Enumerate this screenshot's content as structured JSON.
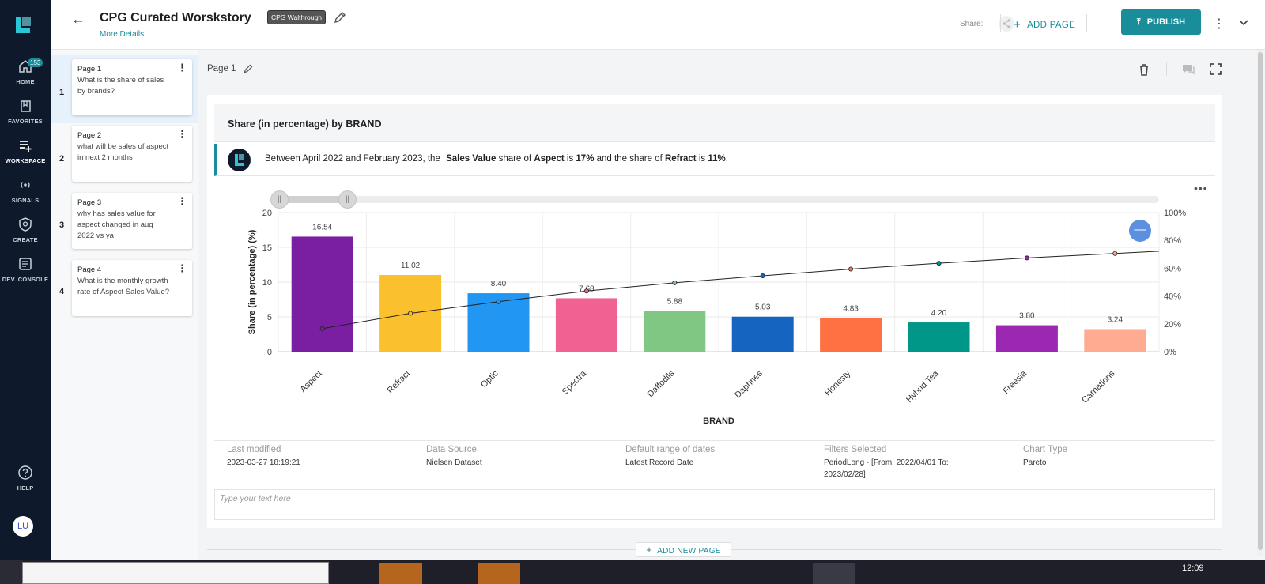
{
  "nav": {
    "badge": "153",
    "items": [
      {
        "label": "HOME"
      },
      {
        "label": "FAVORITES"
      },
      {
        "label": "WORKSPACE"
      },
      {
        "label": "SIGNALS"
      },
      {
        "label": "CREATE"
      },
      {
        "label": "DEV. CONSOLE"
      },
      {
        "label": "HELP"
      }
    ],
    "avatar": "LU"
  },
  "header": {
    "title": "CPG Curated Worskstory",
    "tag": "CPG Walthrough",
    "more_details": "More Details",
    "share_label": "Share:",
    "add_page": "ADD PAGE",
    "publish": "PUBLISH"
  },
  "pages": [
    {
      "num": "1",
      "title": "Page 1",
      "desc": "What is the share of sales by brands?"
    },
    {
      "num": "2",
      "title": "Page 2",
      "desc": "what will be sales of aspect in next 2 months"
    },
    {
      "num": "3",
      "title": "Page 3",
      "desc": "why has sales value for aspect changed in aug 2022 vs ya"
    },
    {
      "num": "4",
      "title": "Page 4",
      "desc": "What is the monthly growth rate of Aspect Sales Value?"
    }
  ],
  "page_label": "Page 1",
  "card": {
    "title": "Share (in percentage) by BRAND",
    "insight": {
      "t1": "Between April 2022 and February 2023, the",
      "b1": "Sales Value",
      "t2": "share of",
      "b2": "Aspect",
      "t3": "is",
      "b3": "17%",
      "t4": "and the",
      "t5": "share of",
      "b4": "Refract",
      "t6": "is",
      "b5": "11%",
      "t7": "."
    }
  },
  "chart_data": {
    "type": "bar",
    "title": "",
    "xlabel": "BRAND",
    "ylabel": "Share (in percentage) (%)",
    "ylim": [
      0,
      20
    ],
    "y_ticks": [
      "0",
      "5",
      "10",
      "15",
      "20"
    ],
    "y2lim": [
      0,
      100
    ],
    "y2_ticks": [
      "0%",
      "20%",
      "40%",
      "60%",
      "80%",
      "100%"
    ],
    "categories": [
      "Aspect",
      "Refract",
      "Optic",
      "Spectra",
      "Daffodils",
      "Daphnes",
      "Honesty",
      "Hybrid Tea",
      "Freesia",
      "Carnations"
    ],
    "values": [
      16.54,
      11.02,
      8.4,
      7.68,
      5.88,
      5.03,
      4.83,
      4.2,
      3.8,
      3.24
    ],
    "labels": [
      "16.54",
      "11.02",
      "8.40",
      "7.68",
      "5.88",
      "5.03",
      "4.83",
      "4.20",
      "3.80",
      "3.24"
    ],
    "colors": [
      "#7b1fa2",
      "#fbc02d",
      "#2196f3",
      "#f06292",
      "#81c784",
      "#1565c0",
      "#ff7043",
      "#009688",
      "#9c27b0",
      "#ffab91"
    ],
    "cumulative": [
      16.54,
      27.56,
      35.96,
      43.64,
      49.52,
      54.55,
      59.38,
      63.58,
      67.38,
      70.62
    ],
    "grid": true
  },
  "meta": {
    "last_modified_label": "Last modified",
    "last_modified": "2023-03-27 18:19:21",
    "data_source_label": "Data Source",
    "data_source": "Nielsen Dataset",
    "default_range_label": "Default range of dates",
    "default_range": "Latest Record Date",
    "filters_label": "Filters Selected",
    "filters_line1": "PeriodLong - [From: 2022/04/01 To:",
    "filters_line2": "2023/02/28]",
    "chart_type_label": "Chart Type",
    "chart_type": "Pareto"
  },
  "note_placeholder": "Type your text here",
  "add_new_page": "ADD NEW PAGE",
  "taskbar": {
    "time": "12:09"
  }
}
